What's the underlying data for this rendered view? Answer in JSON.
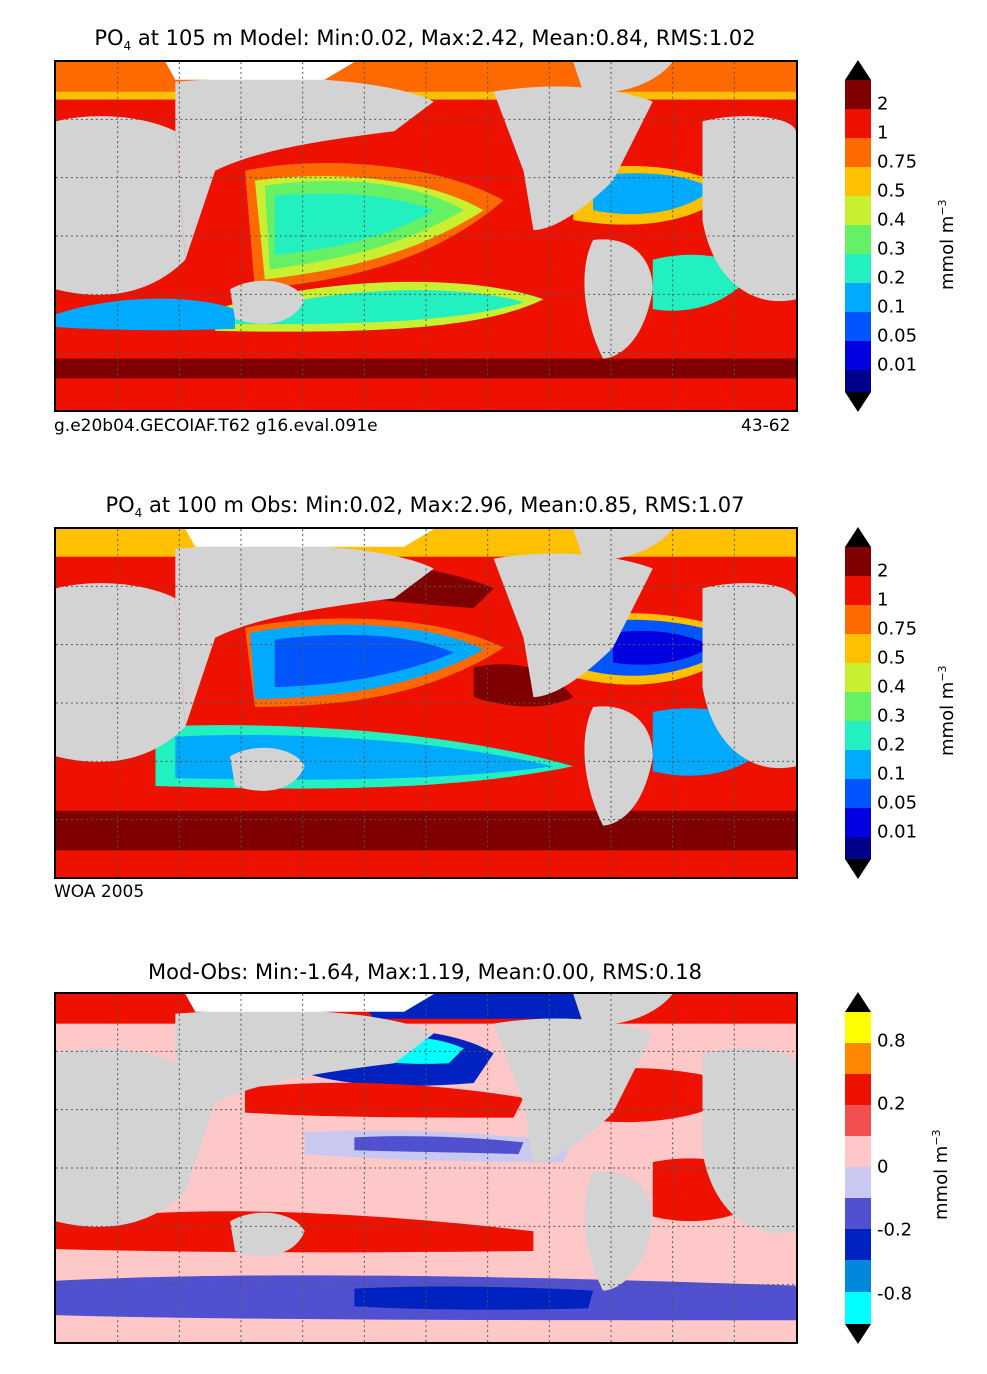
{
  "panels": [
    {
      "title_prefix": "PO",
      "title_sub": "4",
      "title_rest": " at 105 m Model: Min:0.02, Max:2.42, Mean:0.84, RMS:1.02",
      "footer_left": "g.e20b04.GECOIAF.T62 g16.eval.091e",
      "footer_right": "43-62",
      "colorbar": {
        "ticks": [
          "2",
          "1",
          "0.75",
          "0.5",
          "0.4",
          "0.3",
          "0.2",
          "0.1",
          "0.05",
          "0.01"
        ],
        "unit": "mmol m",
        "unit_sup": "−3",
        "colors": [
          "#7f0000",
          "#ee1100",
          "#ff6a00",
          "#ffc000",
          "#c8f030",
          "#66f066",
          "#22f0c0",
          "#00aaff",
          "#0055ff",
          "#0000e0",
          "#00008b"
        ]
      }
    },
    {
      "title_prefix": "PO",
      "title_sub": "4",
      "title_rest": " at 100 m Obs: Min:0.02, Max:2.96, Mean:0.85, RMS:1.07",
      "footer_left": "WOA 2005",
      "footer_right": "",
      "colorbar": {
        "ticks": [
          "2",
          "1",
          "0.75",
          "0.5",
          "0.4",
          "0.3",
          "0.2",
          "0.1",
          "0.05",
          "0.01"
        ],
        "unit": "mmol m",
        "unit_sup": "−3",
        "colors": [
          "#7f0000",
          "#ee1100",
          "#ff6a00",
          "#ffc000",
          "#c8f030",
          "#66f066",
          "#22f0c0",
          "#00aaff",
          "#0055ff",
          "#0000e0",
          "#00008b"
        ]
      }
    },
    {
      "title_prefix": "",
      "title_sub": "",
      "title_rest": "Mod-Obs: Min:-1.64, Max:1.19, Mean:0.00, RMS:0.18",
      "footer_left": "",
      "footer_right": "",
      "colorbar": {
        "ticks": [
          "0.8",
          "0.2",
          "0",
          "-0.2",
          "-0.8"
        ],
        "unit": "mmol m",
        "unit_sup": "−3",
        "colors": [
          "#ffff00",
          "#ff8800",
          "#ee1100",
          "#f05050",
          "#ffc8c8",
          "#c8c8f0",
          "#5050d0",
          "#0022c0",
          "#0088dd",
          "#00ffff"
        ]
      }
    }
  ],
  "colors": {
    "land": "#d3d3d3",
    "ice": "#ffffff",
    "coast": "#000000",
    "grid": "#555555"
  }
}
